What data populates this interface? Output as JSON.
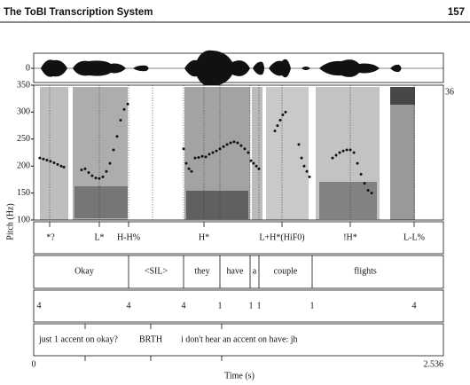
{
  "header": {
    "title": "The ToBI Transcription System",
    "page": "157"
  },
  "figure": {
    "waveform_ticks": [
      0
    ],
    "spectrogram_top_label": "36",
    "pitch_axis": {
      "label": "Pitch (Hz)",
      "ylim": [
        100,
        350
      ],
      "yticks": [
        100,
        150,
        200,
        250,
        300,
        350
      ]
    },
    "time_axis": {
      "label": "Time (s)",
      "xlim": [
        0,
        2.536
      ]
    },
    "pitch_track": {
      "x": [
        0.038,
        0.06,
        0.082,
        0.104,
        0.126,
        0.148,
        0.17,
        0.187,
        null,
        0.296,
        0.318,
        0.34,
        0.362,
        0.384,
        0.406,
        0.428,
        0.45,
        0.472,
        0.494,
        0.516,
        0.538,
        0.56,
        0.582,
        null,
        0.928,
        0.944,
        0.961,
        0.977,
        0.999,
        1.021,
        1.043,
        1.065,
        1.087,
        1.109,
        1.131,
        1.153,
        1.175,
        1.197,
        1.219,
        1.24,
        1.262,
        1.284,
        1.306,
        1.328,
        null,
        1.345,
        1.361,
        1.378,
        1.394,
        null,
        1.493,
        1.509,
        1.526,
        1.542,
        1.559,
        null,
        1.641,
        1.658,
        1.674,
        1.691,
        1.707,
        null,
        1.85,
        1.872,
        1.894,
        1.916,
        1.938,
        1.96,
        1.982,
        2.004,
        2.026,
        2.048,
        2.07,
        2.092
      ],
      "hz": [
        215,
        213,
        211,
        209,
        206,
        203,
        200,
        198,
        null,
        193,
        195,
        188,
        182,
        178,
        177,
        180,
        190,
        205,
        230,
        255,
        285,
        305,
        315,
        null,
        232,
        205,
        195,
        190,
        215,
        216,
        218,
        217,
        222,
        225,
        228,
        232,
        236,
        240,
        243,
        245,
        243,
        238,
        232,
        225,
        null,
        210,
        205,
        200,
        195,
        null,
        265,
        275,
        285,
        295,
        300,
        null,
        240,
        215,
        200,
        190,
        180,
        null,
        215,
        220,
        225,
        228,
        230,
        230,
        225,
        205,
        185,
        168,
        155,
        150
      ]
    },
    "tiers": {
      "tones": [
        "*?",
        "L*",
        "H-H%",
        "H*",
        "L+H*(HiF0)",
        "!H*",
        "L-L%"
      ],
      "words": [
        "Okay",
        "<SIL>",
        "they",
        "have",
        "a",
        "couple",
        "flights"
      ],
      "breaks": [
        "4",
        "4",
        "4",
        "1",
        "1",
        "1",
        "1",
        "4"
      ],
      "misc": [
        "just 1 accent on okay?",
        "BRTH",
        "i don't hear an accent on have: jh"
      ]
    }
  }
}
